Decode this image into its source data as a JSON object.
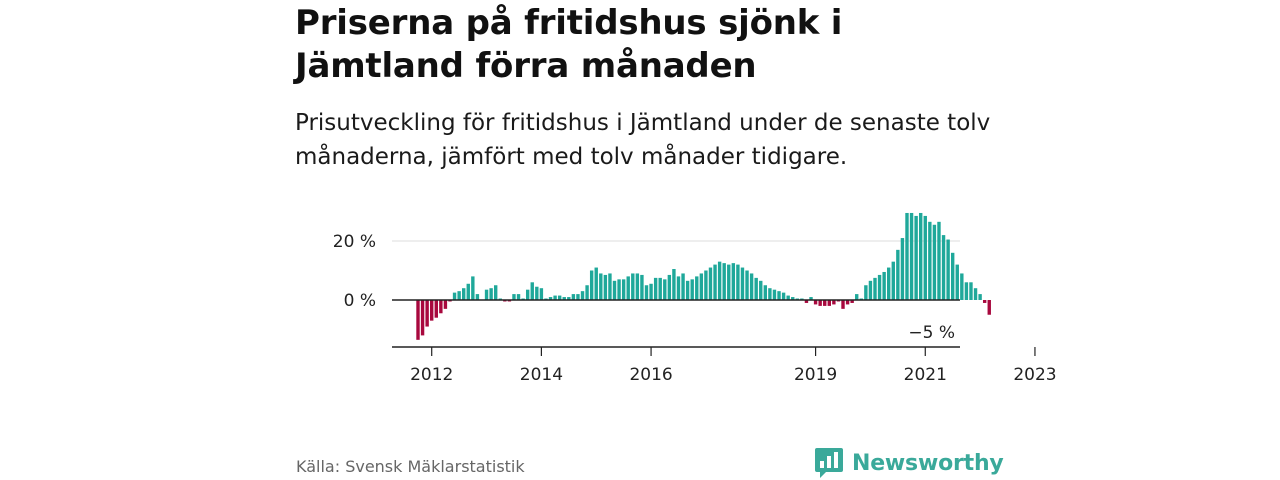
{
  "header": {
    "title": "Priserna på fritidshus sjönk i Jämtland förra månaden",
    "subtitle": "Prisutveckling för fritidshus i Jämtland under de senaste tolv månaderna, jämfört med tolv månader tidigare."
  },
  "footer": {
    "source": "Källa: Svensk Mäklarstatistik",
    "logo_text": "Newsworthy"
  },
  "colors": {
    "positive": "#1fa89a",
    "negative": "#a8083e",
    "brand": "#3aa99a"
  },
  "chart_data": {
    "type": "bar",
    "unit": "%",
    "ylim": [
      -16,
      32
    ],
    "y_ticks": [
      0,
      20
    ],
    "y_tick_labels": [
      "0 %",
      "20 %"
    ],
    "grid": true,
    "x_tick_labels": [
      "2012",
      "2014",
      "2016",
      "2019",
      "2021",
      "2023"
    ],
    "x_tick_index": [
      3,
      27,
      51,
      87,
      111,
      135
    ],
    "last_value_label": "−5 %",
    "values": [
      -13.5,
      -12,
      -9,
      -7,
      -6,
      -4.5,
      -3,
      -0.5,
      2.5,
      3,
      4,
      5.5,
      8,
      2,
      0,
      3.5,
      4,
      5,
      0.5,
      -0.5,
      -0.5,
      2,
      2,
      0.5,
      3.5,
      6,
      4.5,
      4,
      0.5,
      1,
      1.5,
      1.5,
      1,
      1,
      2,
      2,
      3,
      5,
      10,
      11,
      9,
      8.5,
      9,
      6.5,
      7,
      7,
      8,
      9,
      9,
      8.5,
      5,
      5.5,
      7.5,
      7.5,
      7,
      8.5,
      10.5,
      8,
      9,
      6.5,
      7,
      8,
      9,
      10,
      11,
      12,
      13,
      12.5,
      12,
      12.5,
      12,
      11,
      10,
      9,
      7.5,
      6.5,
      5,
      4,
      3.5,
      3,
      2.5,
      1.5,
      1,
      0.5,
      0.5,
      -1,
      1,
      -1.5,
      -2,
      -2,
      -2,
      -1.5,
      -0.5,
      -3,
      -1.5,
      -1,
      2,
      0.5,
      5,
      6.5,
      7.5,
      8.5,
      9.5,
      11,
      13,
      17,
      21,
      29.5,
      29.5,
      28.5,
      29.5,
      28.5,
      26.5,
      25.5,
      26.5,
      22,
      20.5,
      16,
      12,
      9,
      6,
      6,
      4,
      2,
      -1,
      -5
    ]
  }
}
